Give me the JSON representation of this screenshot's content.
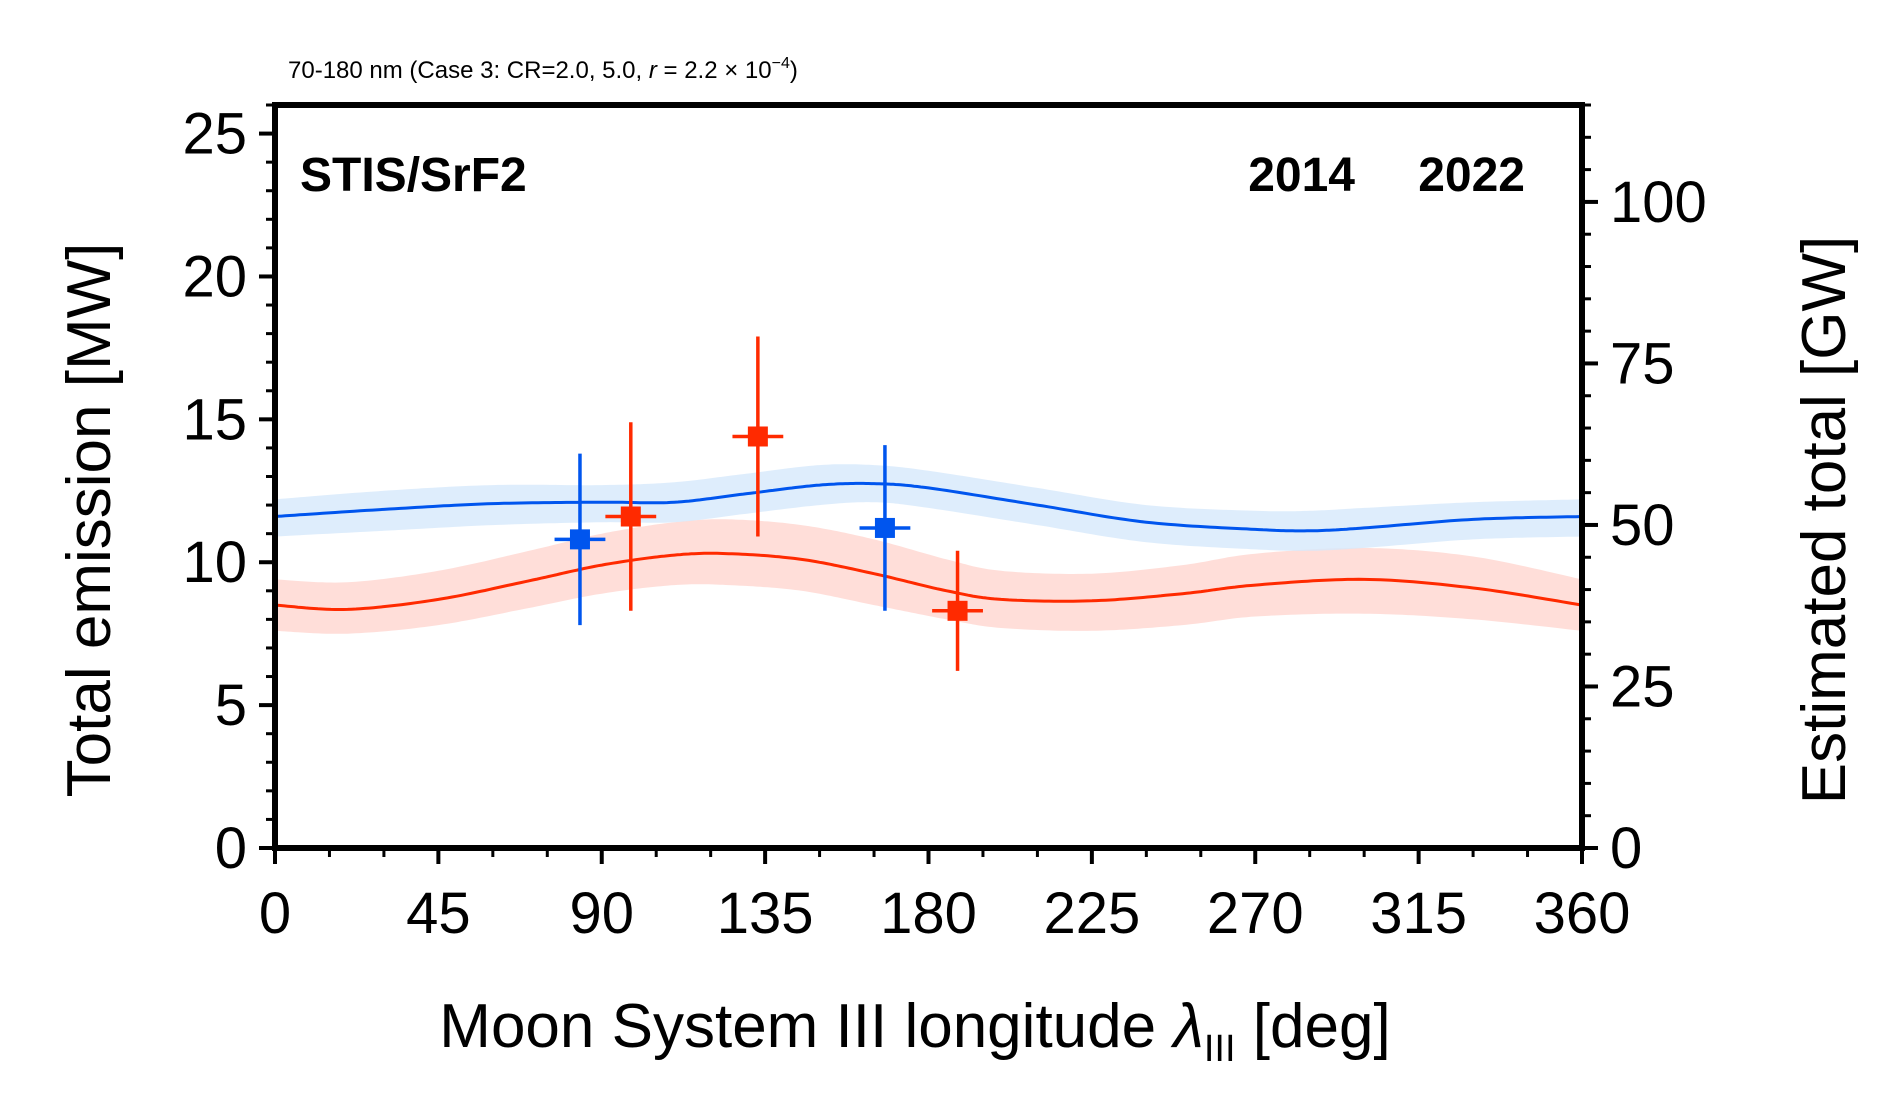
{
  "chart_data": {
    "type": "scatter",
    "title": "70-180 nm (Case 3: CR=2.0, 5.0, r = 2.2 × 10⁻⁴)",
    "title_parts": {
      "prefix": "70-180 nm (Case 3: CR=2.0, 5.0, ",
      "var": "r",
      "eq": " = 2.2 × 10",
      "exp": "−4",
      "suffix": ")"
    },
    "panel_label": "STIS/SrF2",
    "xlabel": "Moon System III longitude",
    "xlabel_symbol": "λ",
    "xlabel_sub": "III",
    "xlabel_unit": "[deg]",
    "ylabel": "Total emission [MW]",
    "y2label": "Estimated total [GW]",
    "xlim": [
      0,
      360
    ],
    "ylim": [
      0,
      26
    ],
    "y2lim": [
      0,
      115
    ],
    "xticks": [
      0,
      45,
      90,
      135,
      180,
      225,
      270,
      315,
      360
    ],
    "yticks": [
      0,
      5,
      10,
      15,
      20,
      25
    ],
    "y2ticks": [
      0,
      25,
      50,
      75,
      100
    ],
    "grid": false,
    "legend_placement": "top-right",
    "series": [
      {
        "name": "2014",
        "color": "#ff2a00",
        "band_color": "#ffd6d0",
        "points": [
          {
            "x": 98,
            "y": 11.6,
            "xerr": 7,
            "ylo": 8.3,
            "yhi": 14.9
          },
          {
            "x": 133,
            "y": 14.4,
            "xerr": 7,
            "ylo": 10.9,
            "yhi": 17.9
          },
          {
            "x": 188,
            "y": 8.3,
            "xerr": 7,
            "ylo": 6.2,
            "yhi": 10.4
          }
        ],
        "model": {
          "x": [
            0,
            20,
            45,
            70,
            90,
            110,
            125,
            145,
            165,
            185,
            200,
            225,
            250,
            270,
            300,
            330,
            360
          ],
          "y": [
            8.5,
            8.35,
            8.7,
            9.35,
            9.9,
            10.25,
            10.3,
            10.1,
            9.6,
            9.0,
            8.7,
            8.65,
            8.9,
            9.2,
            9.4,
            9.1,
            8.5
          ],
          "lo": [
            7.6,
            7.5,
            7.8,
            8.4,
            8.9,
            9.2,
            9.2,
            9.0,
            8.5,
            8.0,
            7.7,
            7.6,
            7.8,
            8.1,
            8.2,
            8.0,
            7.6
          ],
          "hi": [
            9.4,
            9.3,
            9.7,
            10.4,
            11.0,
            11.4,
            11.5,
            11.3,
            10.8,
            10.1,
            9.7,
            9.6,
            9.9,
            10.3,
            10.5,
            10.2,
            9.4
          ]
        }
      },
      {
        "name": "2022",
        "color": "#0055ee",
        "band_color": "#d6e8fb",
        "points": [
          {
            "x": 84,
            "y": 10.8,
            "xerr": 7,
            "ylo": 7.8,
            "yhi": 13.8
          },
          {
            "x": 168,
            "y": 11.2,
            "xerr": 7,
            "ylo": 8.3,
            "yhi": 14.1
          }
        ],
        "model": {
          "x": [
            0,
            30,
            60,
            90,
            110,
            130,
            150,
            165,
            180,
            210,
            240,
            270,
            285,
            300,
            330,
            360
          ],
          "y": [
            11.6,
            11.85,
            12.05,
            12.1,
            12.1,
            12.4,
            12.7,
            12.75,
            12.6,
            12.0,
            11.4,
            11.15,
            11.1,
            11.2,
            11.5,
            11.6
          ],
          "lo": [
            10.9,
            11.1,
            11.3,
            11.4,
            11.4,
            11.7,
            12.0,
            12.1,
            11.9,
            11.3,
            10.7,
            10.45,
            10.4,
            10.5,
            10.8,
            10.9
          ],
          "hi": [
            12.2,
            12.5,
            12.7,
            12.7,
            12.8,
            13.1,
            13.4,
            13.4,
            13.2,
            12.6,
            12.0,
            11.8,
            11.8,
            11.9,
            12.1,
            12.2
          ]
        }
      }
    ]
  }
}
